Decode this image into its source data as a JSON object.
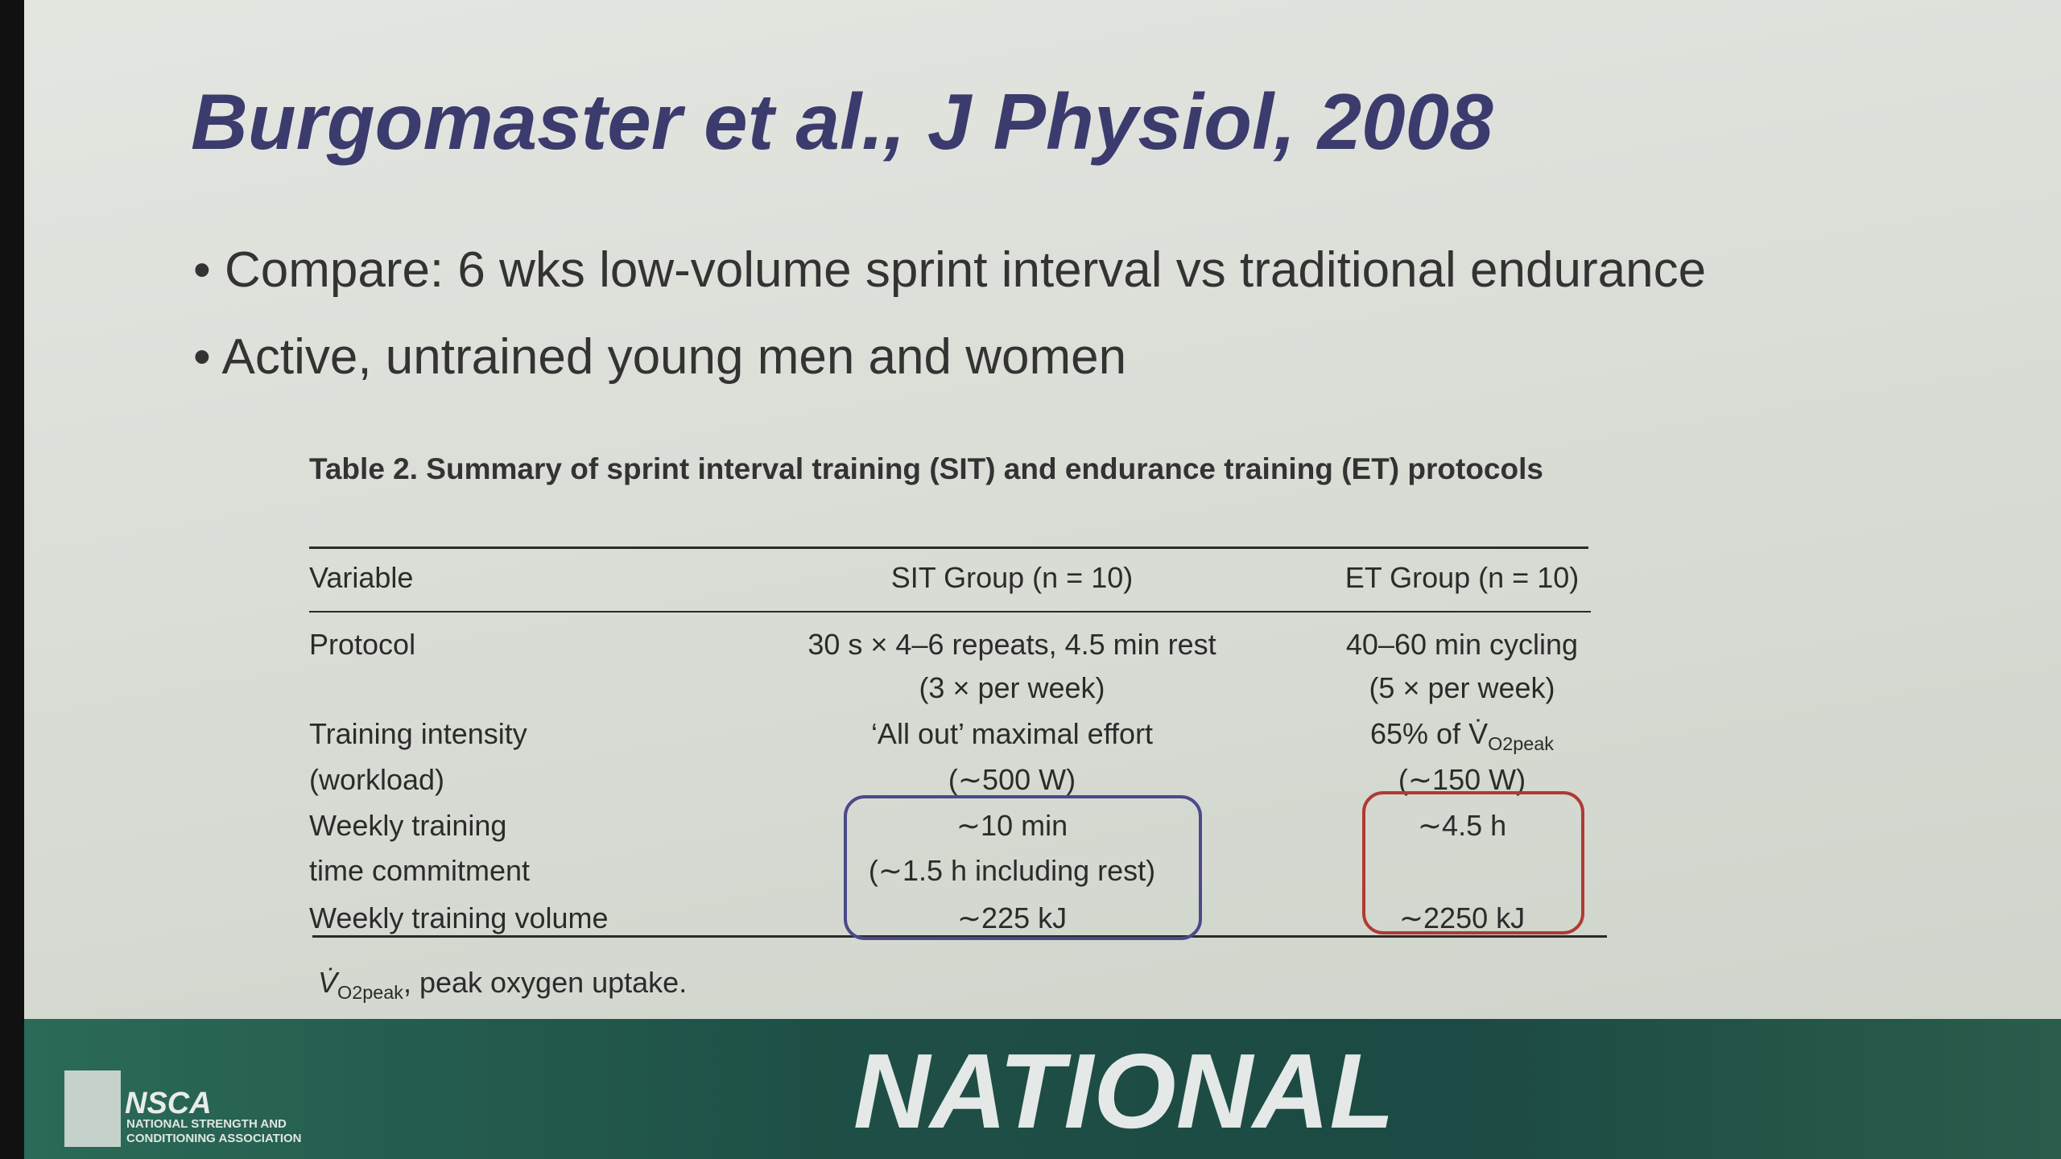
{
  "header": {
    "title": "Burgomaster et al., J Physiol, 2008"
  },
  "bullets": [
    "Compare: 6 wks low-volume sprint interval vs traditional endurance",
    "Active, untrained young men and women"
  ],
  "table": {
    "caption": "Table 2. Summary of sprint interval training (SIT) and endurance training (ET) protocols",
    "columns": [
      "Variable",
      "SIT Group (n = 10)",
      "ET Group (n = 10)"
    ],
    "rows": [
      {
        "variable": [
          "Protocol"
        ],
        "sit": [
          "30 s × 4–6 repeats, 4.5 min rest",
          "(3 × per week)"
        ],
        "et": [
          "40–60 min cycling",
          "(5 × per week)"
        ]
      },
      {
        "variable": [
          "Training intensity",
          "(workload)"
        ],
        "sit": [
          "‘All out’ maximal effort",
          "(∼500 W)"
        ],
        "et": [
          {
            "text": "65% of V̇",
            "sub": "O2peak"
          },
          "(∼150 W)"
        ]
      },
      {
        "variable": [
          "Weekly training",
          "time commitment"
        ],
        "sit": [
          "∼10 min",
          "(∼1.5 h including rest)"
        ],
        "et": [
          "∼4.5 h"
        ]
      },
      {
        "variable": [
          "Weekly training volume"
        ],
        "sit": [
          "∼225 kJ"
        ],
        "et": [
          "∼2250 kJ"
        ]
      }
    ],
    "footnote": {
      "symbol": "V̇",
      "sub": "O2peak",
      "text": ", peak oxygen uptake."
    }
  },
  "footer": {
    "logo": "NSCA",
    "logo_line1": "NATIONAL STRENGTH AND",
    "logo_line2": "CONDITIONING ASSOCIATION",
    "banner": "NATIONAL"
  }
}
